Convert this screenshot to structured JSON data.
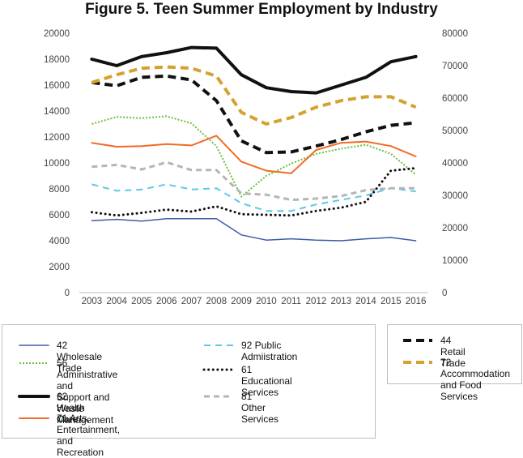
{
  "chart_data": {
    "type": "line",
    "title": "Figure 5. Teen Summer Employment by Industry",
    "xlabel": "",
    "ylabel": "",
    "x": [
      "2003",
      "2004",
      "2005",
      "2006",
      "2007",
      "2008",
      "2009",
      "2010",
      "2011",
      "2012",
      "2013",
      "2014",
      "2015",
      "2016"
    ],
    "y_left_ticks": [
      "0",
      "2000",
      "4000",
      "6000",
      "8000",
      "10000",
      "12000",
      "14000",
      "16000",
      "18000",
      "20000"
    ],
    "y_right_ticks": [
      "0",
      "10000",
      "20000",
      "30000",
      "40000",
      "50000",
      "60000",
      "70000",
      "80000"
    ],
    "ylim_left": [
      0,
      20000
    ],
    "ylim_right": [
      0,
      80000
    ],
    "grid": false,
    "legend_placement": "bottom",
    "series": [
      {
        "name": "42 Wholesale Trade",
        "axis": "left",
        "color": "#3b5ba8",
        "style": "solid",
        "width": 1.5,
        "values": [
          5550,
          5650,
          5520,
          5700,
          5700,
          5700,
          4450,
          4050,
          4150,
          4050,
          4000,
          4150,
          4250,
          4000
        ]
      },
      {
        "name": "56 Administrative and\nSupport and Waste Management",
        "axis": "left",
        "color": "#6bbf3a",
        "style": "dotted-green",
        "width": 2,
        "values": [
          13000,
          13550,
          13450,
          13600,
          13050,
          11300,
          7400,
          9000,
          9950,
          10700,
          11100,
          11400,
          10700,
          9100
        ]
      },
      {
        "name": "62 Health Care",
        "axis": "right",
        "color": "#111111",
        "style": "solid",
        "width": 4,
        "values": [
          72000,
          70000,
          72800,
          74000,
          75600,
          75400,
          67200,
          63200,
          62000,
          61600,
          64000,
          66400,
          71200,
          72800
        ]
      },
      {
        "name": "71 Arts, Entertainment,\nand Recreation",
        "axis": "left",
        "color": "#f26b26",
        "style": "solid",
        "width": 2,
        "values": [
          11550,
          11250,
          11300,
          11450,
          11350,
          12100,
          10100,
          9400,
          9200,
          11000,
          11550,
          11650,
          11300,
          10500
        ]
      },
      {
        "name": "92 Public Admiistration",
        "axis": "left",
        "color": "#5bc8ec",
        "style": "dashed-blue",
        "width": 2,
        "values": [
          8350,
          7850,
          7950,
          8350,
          7950,
          8050,
          6900,
          6300,
          6300,
          6800,
          7150,
          7500,
          8050,
          7800
        ]
      },
      {
        "name": "61 Educational Services",
        "axis": "left",
        "color": "#111111",
        "style": "dotted-black",
        "width": 3,
        "values": [
          6200,
          5950,
          6150,
          6400,
          6250,
          6650,
          6050,
          6000,
          5950,
          6300,
          6550,
          7000,
          9400,
          9600
        ]
      },
      {
        "name": "81 Other Services",
        "axis": "left",
        "color": "#b5b5b5",
        "style": "dashed-gray",
        "width": 3,
        "values": [
          9700,
          9850,
          9500,
          10050,
          9450,
          9450,
          7650,
          7550,
          7150,
          7250,
          7450,
          7900,
          8050,
          8050
        ]
      },
      {
        "name": "44 Retail Trade",
        "axis": "right",
        "color": "#111111",
        "style": "dashed-black",
        "width": 4,
        "values": [
          64800,
          63800,
          66400,
          66800,
          65600,
          59200,
          46800,
          43200,
          43400,
          45200,
          47200,
          49600,
          51600,
          52400
        ]
      },
      {
        "name": "72 Accommodation\nand Food Services",
        "axis": "right",
        "color": "#d4a22f",
        "style": "dashed-gold",
        "width": 4,
        "values": [
          64800,
          67200,
          69200,
          69600,
          69200,
          66800,
          55600,
          52000,
          54000,
          57200,
          59200,
          60400,
          60400,
          57200
        ]
      }
    ]
  },
  "legend_groups": {
    "left_box": {
      "col1": [
        "42 Wholesale Trade",
        "56 Administrative and\nSupport and Waste Management",
        "62 Health Care",
        "71 Arts, Entertainment,\nand Recreation"
      ],
      "col2": [
        "92 Public Admiistration",
        "61 Educational Services",
        "81 Other Services"
      ]
    },
    "right_box": [
      "44 Retail Trade",
      "72 Accommodation\nand Food Services"
    ]
  }
}
